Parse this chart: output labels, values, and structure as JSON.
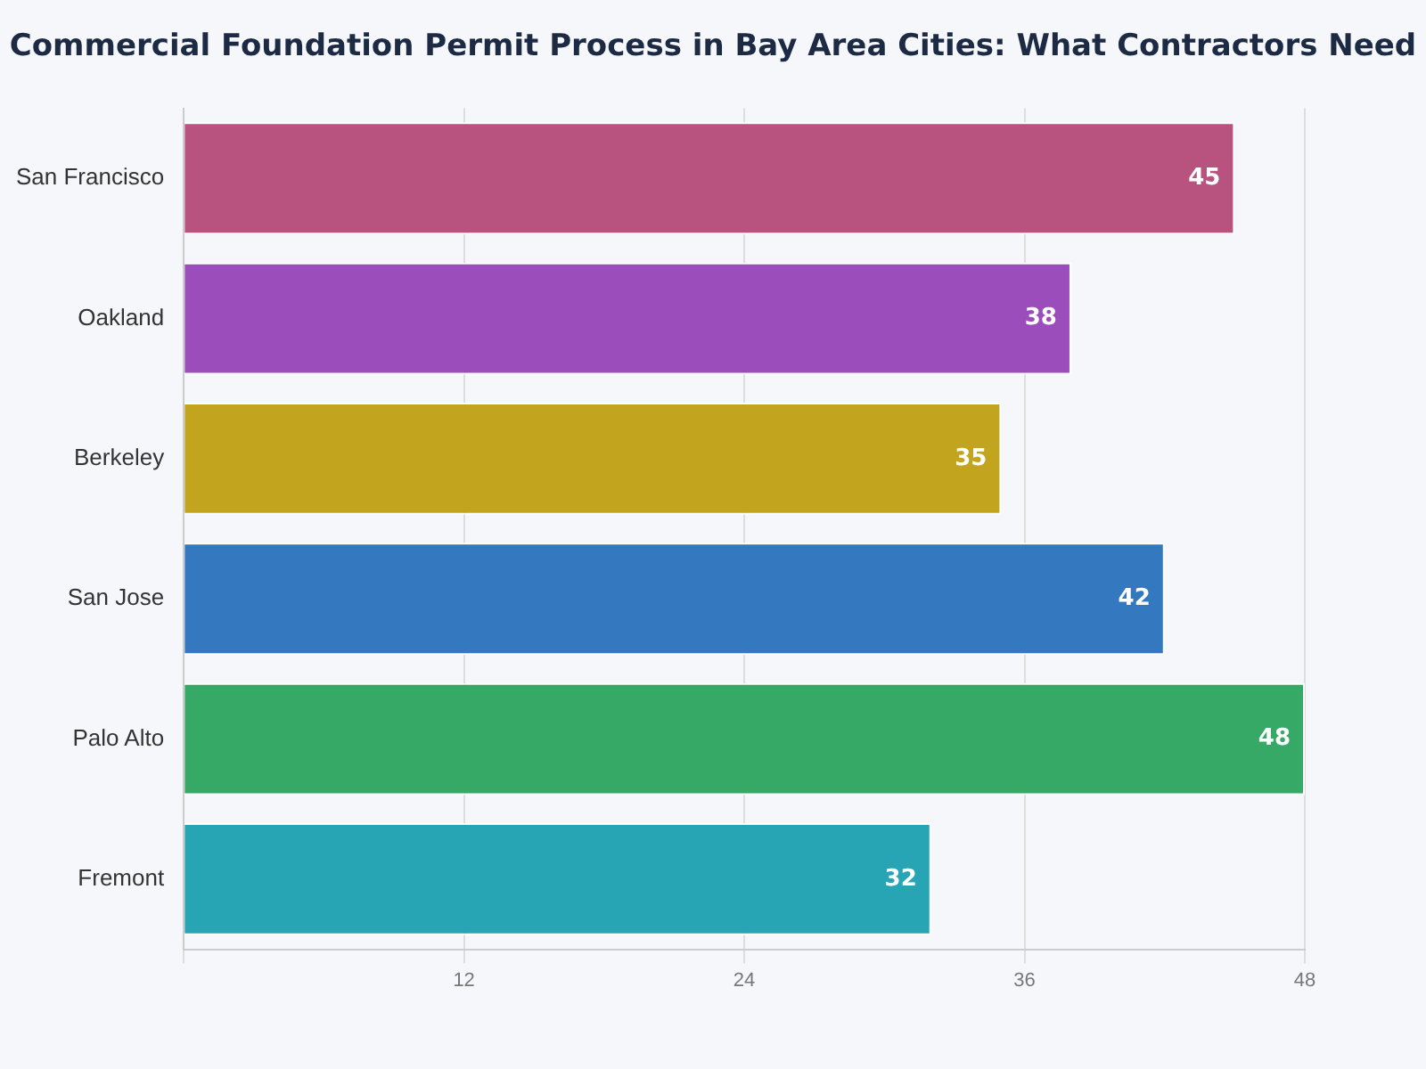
{
  "chart_data": {
    "type": "bar",
    "orientation": "horizontal",
    "title": "Commercial Foundation Permit Process in Bay Area Cities: What Contractors Need",
    "categories": [
      "San Francisco",
      "Oakland",
      "Berkeley",
      "San Jose",
      "Palo Alto",
      "Fremont"
    ],
    "values": [
      45,
      38,
      35,
      42,
      48,
      32
    ],
    "colors": [
      "#b85380",
      "#9b4dbb",
      "#c2a41e",
      "#3478c0",
      "#36a966",
      "#27a5b5"
    ],
    "xlim": [
      0,
      48
    ],
    "xticks": [
      {
        "value": 0,
        "label": null
      },
      12,
      24,
      36,
      48
    ],
    "grid": "x",
    "data_labels": true,
    "legend": false
  }
}
